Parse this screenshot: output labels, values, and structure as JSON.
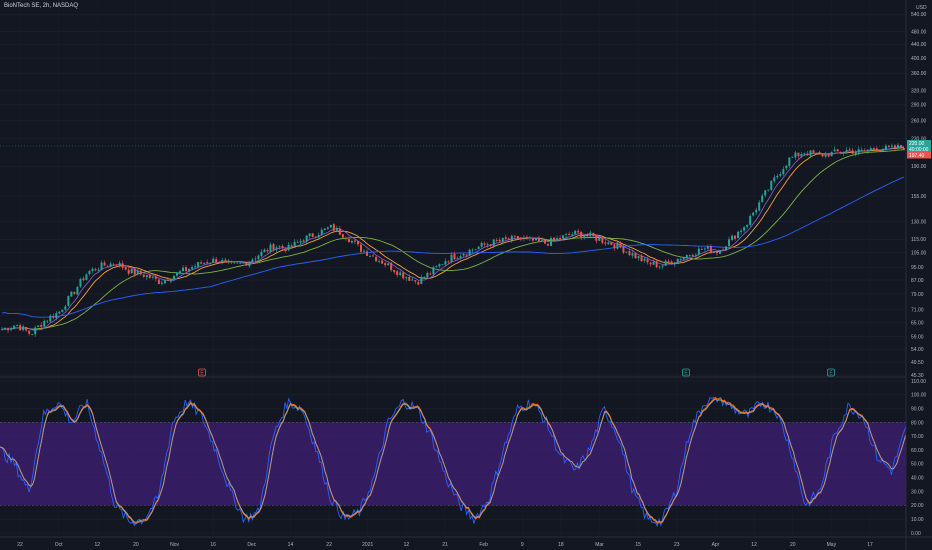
{
  "header": {
    "title": "BioNTech SE, 2h, NASDAQ"
  },
  "colors": {
    "background": "#131722",
    "up": "#26a69a",
    "down": "#ef5350",
    "ma_orange": "#f7a03a",
    "ma_green": "#7cb342",
    "ma_purple": "#7e57c2",
    "ma_blue": "#2962ff",
    "stoch_band": "#3f1f74",
    "stoch_k": "#2962ff",
    "stoch_d": "#ff6d00",
    "stoch_line": "#9e9e9e",
    "price_badge_green": "#26a69a",
    "price_badge_red": "#ef5350"
  },
  "price_axis": {
    "currency": "USD",
    "ticks": [
      "540.00",
      "480.00",
      "440.00",
      "400.00",
      "360.00",
      "320.00",
      "290.00",
      "260.00",
      "230.00",
      "190.00",
      "155.00",
      "130.00",
      "115.00",
      "105.00",
      "95.00",
      "87.00",
      "79.00",
      "71.00",
      "65.00",
      "59.00",
      "54.00",
      "49.50",
      "45.30"
    ],
    "badges": [
      "220.00",
      "40:00:00",
      "197.40"
    ]
  },
  "stoch_axis": {
    "ticks": [
      "110.00",
      "100.00",
      "90.00",
      "80.00",
      "70.00",
      "60.00",
      "50.00",
      "40.00",
      "30.00",
      "20.00",
      "10.00",
      "0.00"
    ]
  },
  "time_axis": {
    "labels": [
      "22",
      "Oct",
      "12",
      "20",
      "Nov",
      "16",
      "Dec",
      "14",
      "22",
      "2021",
      "12",
      "21",
      "Feb",
      "9",
      "18",
      "Mar",
      "15",
      "23",
      "Apr",
      "12",
      "20",
      "May",
      "17"
    ]
  },
  "event_markers": [
    "E",
    "E",
    "E"
  ],
  "chart_data": {
    "type": "candlestick",
    "title": "BioNTech SE, 2h, NASDAQ",
    "y_scale": "log",
    "ylim": [
      45.3,
      580
    ],
    "x_labels": [
      "22",
      "Oct",
      "12",
      "20",
      "Nov",
      "16",
      "Dec",
      "14",
      "22",
      "2021",
      "12",
      "21",
      "Feb",
      "9",
      "18",
      "Mar",
      "15",
      "23",
      "Apr",
      "12",
      "20",
      "May",
      "17"
    ],
    "close_path": [
      62,
      64,
      60,
      66,
      70,
      80,
      92,
      96,
      98,
      92,
      90,
      86,
      90,
      94,
      98,
      100,
      96,
      98,
      104,
      110,
      108,
      115,
      120,
      125,
      118,
      108,
      102,
      96,
      90,
      86,
      92,
      100,
      104,
      108,
      112,
      114,
      116,
      114,
      112,
      116,
      120,
      118,
      114,
      110,
      104,
      98,
      96,
      100,
      104,
      108,
      106,
      116,
      128,
      150,
      175,
      200,
      210,
      205,
      208,
      212,
      210,
      216,
      214,
      218
    ],
    "moving_averages": [
      {
        "name": "",
        "color": "orange"
      },
      {
        "name": "",
        "color": "green"
      },
      {
        "name": "",
        "color": "purple"
      },
      {
        "name": "",
        "color": "blue"
      }
    ],
    "last_price": 197.4,
    "stochastic": {
      "ylim": [
        0,
        110
      ],
      "band": [
        20,
        80
      ],
      "k_path": [
        60,
        50,
        30,
        85,
        95,
        80,
        95,
        60,
        20,
        8,
        10,
        25,
        80,
        95,
        85,
        60,
        30,
        10,
        15,
        70,
        95,
        90,
        60,
        25,
        10,
        15,
        40,
        80,
        95,
        90,
        70,
        40,
        20,
        10,
        25,
        60,
        90,
        95,
        80,
        55,
        45,
        60,
        90,
        70,
        30,
        10,
        8,
        30,
        75,
        95,
        98,
        90,
        85,
        95,
        88,
        60,
        20,
        30,
        70,
        92,
        85,
        55,
        45,
        75
      ]
    }
  }
}
